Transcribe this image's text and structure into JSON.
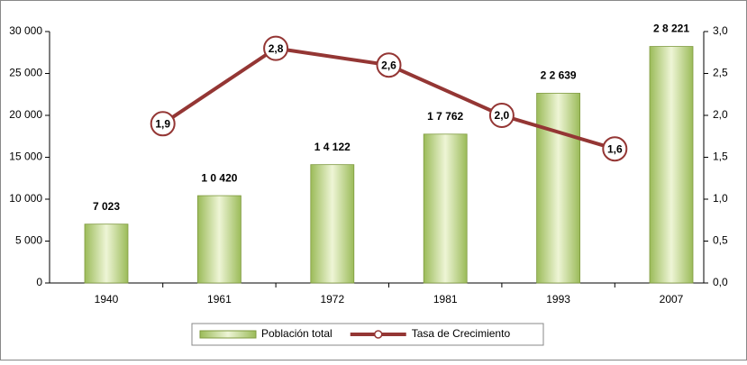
{
  "chart_data": {
    "type": "bar-line",
    "categories": [
      "1940",
      "1961",
      "1972",
      "1981",
      "1993",
      "2007"
    ],
    "series": [
      {
        "name": "Población total",
        "type": "bar",
        "color": "#9bbb59",
        "values": [
          7023,
          10420,
          14122,
          17762,
          22639,
          28221
        ],
        "value_labels": [
          "7 023",
          "1 0 420",
          "1 4 122",
          "1 7 762",
          "2 2 639",
          "2 8 221"
        ]
      },
      {
        "name": "Tasa de Crecimiento",
        "type": "line",
        "axis": "y2",
        "color": "#943634",
        "values": [
          null,
          1.9,
          2.8,
          2.6,
          2.0,
          1.6
        ],
        "value_labels": [
          null,
          "1,9",
          "2,8",
          "2,6",
          "2,0",
          "1,6"
        ]
      }
    ],
    "ylim": [
      0,
      30000
    ],
    "yticks": [
      0,
      {
        "value": 5000,
        "label": "5 000"
      },
      {
        "value": 10000,
        "label": "10 000"
      },
      {
        "value": 15000,
        "label": "15 000"
      },
      {
        "value": 20000,
        "label": "20 000"
      },
      {
        "value": 25000,
        "label": "25 000"
      },
      {
        "value": 30000,
        "label": "30 000"
      }
    ],
    "y2lim": [
      0,
      3
    ],
    "y2ticks": [
      {
        "value": 0,
        "label": "0,0"
      },
      {
        "value": 0.5,
        "label": "0,5"
      },
      {
        "value": 1,
        "label": "1,0"
      },
      {
        "value": 1.5,
        "label": "1,5"
      },
      {
        "value": 2,
        "label": "2,0"
      },
      {
        "value": 2.5,
        "label": "2,5"
      },
      {
        "value": 3,
        "label": "3,0"
      }
    ],
    "legend": "bottom"
  }
}
